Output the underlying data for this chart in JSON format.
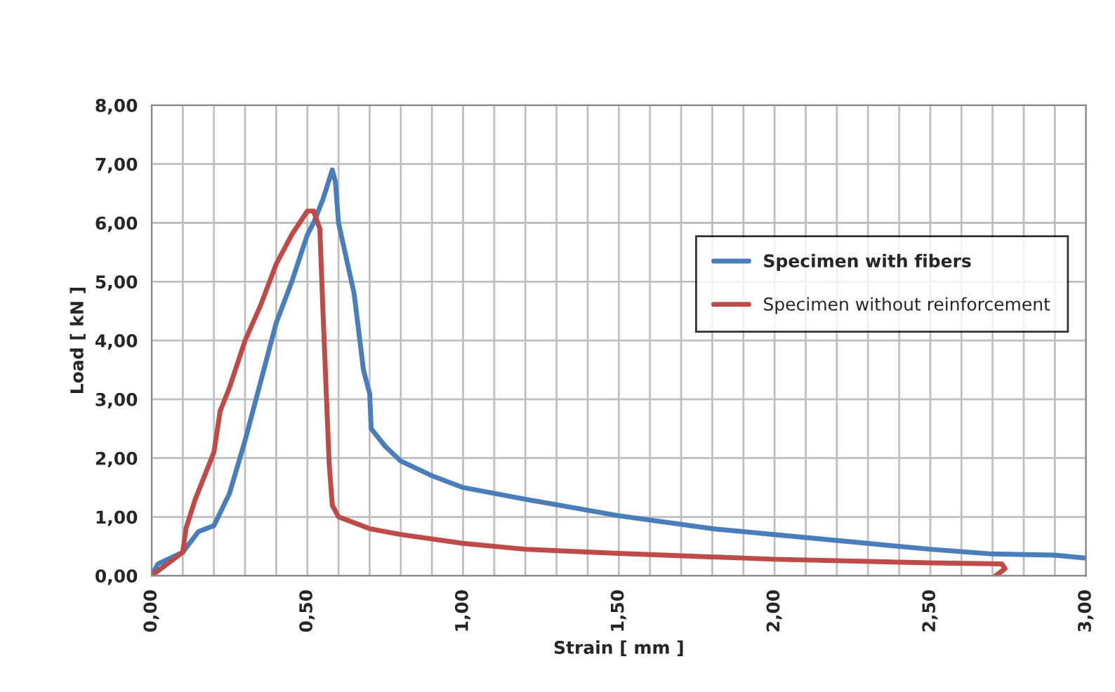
{
  "chart_data": {
    "type": "line",
    "xlabel": "Strain [ mm ]",
    "ylabel": "Load [ kN ]",
    "xlim": [
      0,
      3
    ],
    "ylim": [
      0,
      8
    ],
    "xticks": [
      {
        "value": 0,
        "label": "0,00"
      },
      {
        "value": 0.5,
        "label": "0,50"
      },
      {
        "value": 1,
        "label": "1,00"
      },
      {
        "value": 1.5,
        "label": "1,50"
      },
      {
        "value": 2,
        "label": "2,00"
      },
      {
        "value": 2.5,
        "label": "2,50"
      },
      {
        "value": 3,
        "label": "3,00"
      }
    ],
    "yticks": [
      {
        "value": 0,
        "label": "0,00"
      },
      {
        "value": 1,
        "label": "1,00"
      },
      {
        "value": 2,
        "label": "2,00"
      },
      {
        "value": 3,
        "label": "3,00"
      },
      {
        "value": 4,
        "label": "4,00"
      },
      {
        "value": 5,
        "label": "5,00"
      },
      {
        "value": 6,
        "label": "6,00"
      },
      {
        "value": 7,
        "label": "7,00"
      },
      {
        "value": 8,
        "label": "8,00"
      }
    ],
    "grid": true,
    "legend": "right",
    "marker": "none",
    "line_style": "solid",
    "series": [
      {
        "name": "Specimen with fibers",
        "color": "#4a7ebb",
        "x": [
          0,
          0.02,
          0.1,
          0.15,
          0.2,
          0.25,
          0.3,
          0.35,
          0.4,
          0.45,
          0.5,
          0.52,
          0.55,
          0.58,
          0.59,
          0.6,
          0.65,
          0.68,
          0.7,
          0.705,
          0.75,
          0.8,
          0.9,
          1.0,
          1.2,
          1.5,
          1.8,
          2.0,
          2.3,
          2.5,
          2.7,
          2.9,
          3.0
        ],
        "values": [
          0,
          0.2,
          0.4,
          0.75,
          0.85,
          1.4,
          2.3,
          3.3,
          4.3,
          5.0,
          5.8,
          6.0,
          6.4,
          6.9,
          6.7,
          6.0,
          4.8,
          3.5,
          3.1,
          2.5,
          2.2,
          1.95,
          1.7,
          1.5,
          1.3,
          1.02,
          0.8,
          0.7,
          0.55,
          0.45,
          0.37,
          0.35,
          0.3
        ]
      },
      {
        "name": "Specimen without reinforcement",
        "color": "#be4b48",
        "x": [
          0,
          0.05,
          0.1,
          0.11,
          0.14,
          0.17,
          0.2,
          0.22,
          0.25,
          0.3,
          0.35,
          0.4,
          0.45,
          0.5,
          0.52,
          0.54,
          0.55,
          0.57,
          0.58,
          0.6,
          0.7,
          0.8,
          1.0,
          1.2,
          1.5,
          2.0,
          2.5,
          2.73,
          2.74,
          2.71
        ],
        "values": [
          0,
          0.2,
          0.4,
          0.8,
          1.3,
          1.7,
          2.1,
          2.8,
          3.2,
          4.0,
          4.6,
          5.3,
          5.8,
          6.2,
          6.2,
          5.9,
          4.5,
          1.9,
          1.2,
          1.0,
          0.8,
          0.7,
          0.55,
          0.45,
          0.38,
          0.28,
          0.22,
          0.2,
          0.12,
          0.0
        ]
      }
    ]
  }
}
